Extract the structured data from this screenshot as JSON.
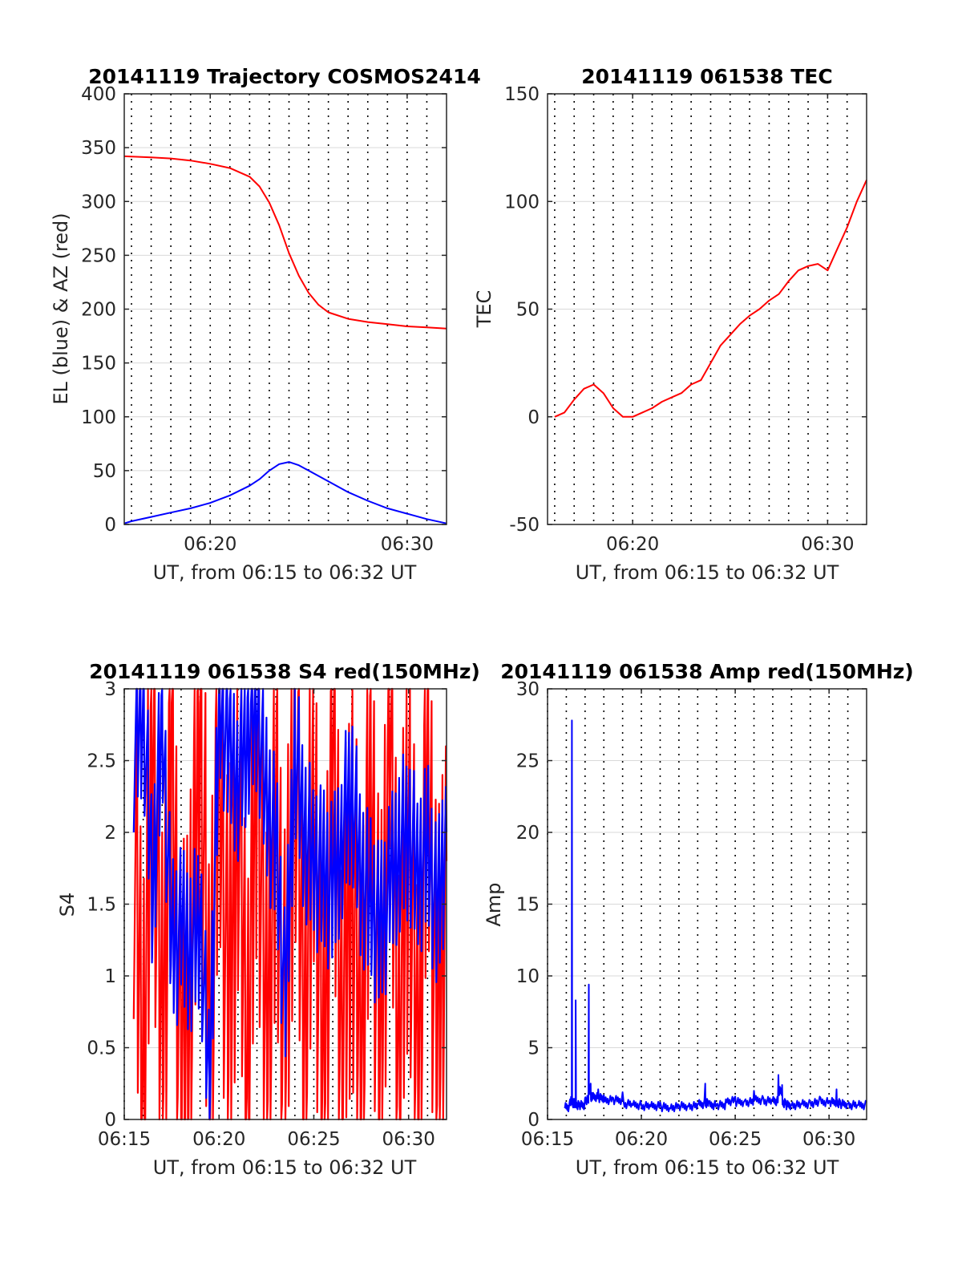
{
  "colors": {
    "az": "#ff0000",
    "el": "#0000ff",
    "tec": "#ff0000",
    "s4_red": "#ff0000",
    "s4_blue": "#0000ff",
    "amp": "#0000ff",
    "grid": "#d9d9d9",
    "axis": "#262626"
  },
  "chart_data": [
    {
      "type": "line",
      "title": "20141119 Trajectory COSMOS2414",
      "xlabel": "UT, from 06:15 to 06:32 UT",
      "ylabel": "EL (blue) & AZ (red)",
      "xlim": [
        "06:15:38",
        "06:32:00"
      ],
      "ylim": [
        0,
        400
      ],
      "yticks": [
        "0",
        "50",
        "100",
        "150",
        "200",
        "250",
        "300",
        "350",
        "400"
      ],
      "xticks": [
        "06:20",
        "06:30"
      ],
      "grid": "major horizontal gridlines, dotted vertical lines",
      "series": [
        {
          "name": "AZ",
          "color": "red",
          "x": [
            "06:15:38",
            "06:17:00",
            "06:18:00",
            "06:19:00",
            "06:20:00",
            "06:21:00",
            "06:22:00",
            "06:22:30",
            "06:23:00",
            "06:23:30",
            "06:24:00",
            "06:24:30",
            "06:25:00",
            "06:25:30",
            "06:26:00",
            "06:27:00",
            "06:28:00",
            "06:29:00",
            "06:30:00",
            "06:31:00",
            "06:32:00"
          ],
          "values": [
            342,
            341,
            340,
            338,
            335,
            331,
            323,
            314,
            299,
            278,
            252,
            231,
            215,
            204,
            197,
            191,
            188,
            186,
            184,
            183,
            182
          ]
        },
        {
          "name": "EL",
          "color": "blue",
          "x": [
            "06:15:38",
            "06:16:00",
            "06:17:00",
            "06:18:00",
            "06:19:00",
            "06:20:00",
            "06:21:00",
            "06:22:00",
            "06:22:30",
            "06:23:00",
            "06:23:30",
            "06:24:00",
            "06:24:30",
            "06:25:00",
            "06:26:00",
            "06:27:00",
            "06:28:00",
            "06:29:00",
            "06:30:00",
            "06:31:00",
            "06:32:00"
          ],
          "values": [
            1,
            3,
            7,
            11,
            15,
            20,
            27,
            36,
            42,
            50,
            56,
            58,
            55,
            50,
            40,
            30,
            22,
            15,
            10,
            5,
            1
          ]
        }
      ]
    },
    {
      "type": "line",
      "title": "20141119 061538 TEC",
      "xlabel": "UT, from 06:15 to 06:32 UT",
      "ylabel": "TEC",
      "xlim": [
        "06:15:38",
        "06:32:00"
      ],
      "ylim": [
        -50,
        150
      ],
      "yticks": [
        "-50",
        "0",
        "50",
        "100",
        "150"
      ],
      "xticks": [
        "06:20",
        "06:30"
      ],
      "series": [
        {
          "name": "TEC",
          "color": "red",
          "x": [
            "06:16:00",
            "06:16:30",
            "06:17:00",
            "06:17:30",
            "06:18:00",
            "06:18:30",
            "06:19:00",
            "06:19:30",
            "06:20:00",
            "06:20:30",
            "06:21:00",
            "06:21:30",
            "06:22:00",
            "06:22:30",
            "06:23:00",
            "06:23:30",
            "06:24:00",
            "06:24:30",
            "06:25:00",
            "06:25:30",
            "06:26:00",
            "06:26:30",
            "06:27:00",
            "06:27:30",
            "06:28:00",
            "06:28:30",
            "06:29:00",
            "06:29:30",
            "06:30:00",
            "06:30:30",
            "06:31:00",
            "06:31:30",
            "06:32:00"
          ],
          "values": [
            0,
            2,
            8,
            13,
            15,
            11,
            4,
            0,
            0,
            2,
            4,
            7,
            9,
            11,
            15,
            17,
            25,
            33,
            38,
            43,
            47,
            50,
            54,
            57,
            63,
            68,
            70,
            71,
            68,
            78,
            88,
            100,
            110
          ]
        }
      ]
    },
    {
      "type": "line",
      "title": "20141119 061538 S4 red(150MHz)",
      "xlabel": "UT, from 06:15 to 06:32 UT",
      "ylabel": "S4",
      "xlim": [
        "06:15:00",
        "06:32:00"
      ],
      "ylim": [
        0,
        3
      ],
      "yticks": [
        "0",
        "0.5",
        "1",
        "1.5",
        "2",
        "2.5",
        "3"
      ],
      "xticks": [
        "06:15",
        "06:20",
        "06:25",
        "06:30"
      ],
      "series": [
        {
          "name": "S4 red",
          "color": "red",
          "x": [
            "06:15:30",
            "06:16:00",
            "06:16:30",
            "06:17:00",
            "06:17:30",
            "06:18:00",
            "06:18:30",
            "06:19:00",
            "06:19:30",
            "06:20:00",
            "06:20:30",
            "06:21:00",
            "06:21:30",
            "06:22:00",
            "06:22:30",
            "06:23:00",
            "06:23:30",
            "06:24:00",
            "06:24:30",
            "06:25:00",
            "06:25:30",
            "06:26:00",
            "06:26:30",
            "06:27:00",
            "06:27:30",
            "06:28:00",
            "06:28:30",
            "06:29:00",
            "06:29:30",
            "06:30:00",
            "06:30:30",
            "06:31:00",
            "06:31:30",
            "06:32:00"
          ],
          "values": [
            2.2,
            0.3,
            2.8,
            0.5,
            2.6,
            0.2,
            1.1,
            2.9,
            0.4,
            2.7,
            0.6,
            2.4,
            0.3,
            2.8,
            0.5,
            2.1,
            0.4,
            2.9,
            0.6,
            2.3,
            0.2,
            2.6,
            0.7,
            1.9,
            0.4,
            2.5,
            0.3,
            2.8,
            0.5,
            2.2,
            0.3,
            2.7,
            0.4,
            1.8
          ]
        },
        {
          "name": "S4 blue",
          "color": "blue",
          "x": [
            "06:15:30",
            "06:16:00",
            "06:16:30",
            "06:17:00",
            "06:17:30",
            "06:18:00",
            "06:18:30",
            "06:19:00",
            "06:19:30",
            "06:20:00",
            "06:20:30",
            "06:21:00",
            "06:21:30",
            "06:22:00",
            "06:22:30",
            "06:23:00",
            "06:23:30",
            "06:24:00",
            "06:24:30",
            "06:25:00",
            "06:25:30",
            "06:26:00",
            "06:26:30",
            "06:27:00",
            "06:27:30",
            "06:28:00",
            "06:28:30",
            "06:29:00",
            "06:29:30",
            "06:30:00",
            "06:30:30",
            "06:31:00",
            "06:31:30",
            "06:32:00"
          ],
          "values": [
            2.6,
            2.9,
            1.6,
            2.8,
            1.2,
            1.3,
            1.2,
            1.4,
            0.2,
            2.9,
            2.6,
            2.4,
            2.7,
            2.9,
            2.2,
            1.9,
            0.8,
            2.6,
            2.0,
            1.8,
            1.7,
            1.6,
            2.0,
            2.3,
            1.7,
            1.5,
            1.3,
            1.6,
            1.9,
            2.0,
            1.7,
            1.9,
            1.4,
            2.0
          ]
        }
      ]
    },
    {
      "type": "line",
      "title": "20141119 061538 Amp red(150MHz)",
      "xlabel": "UT, from 06:15 to 06:32 UT",
      "ylabel": "Amp",
      "xlim": [
        "06:15:00",
        "06:32:00"
      ],
      "ylim": [
        0,
        30
      ],
      "yticks": [
        "0",
        "5",
        "10",
        "15",
        "20",
        "25",
        "30"
      ],
      "xticks": [
        "06:15",
        "06:20",
        "06:25",
        "06:30"
      ],
      "series": [
        {
          "name": "Amp",
          "color": "blue",
          "x": [
            "06:15:54",
            "06:16:12",
            "06:16:18",
            "06:16:24",
            "06:16:30",
            "06:16:42",
            "06:17:00",
            "06:17:12",
            "06:17:18",
            "06:17:24",
            "06:17:42",
            "06:18:00",
            "06:18:30",
            "06:19:00",
            "06:19:30",
            "06:20:00",
            "06:20:30",
            "06:21:00",
            "06:21:30",
            "06:22:00",
            "06:22:30",
            "06:23:00",
            "06:23:24",
            "06:23:36",
            "06:24:00",
            "06:24:30",
            "06:25:00",
            "06:25:30",
            "06:26:00",
            "06:26:30",
            "06:27:00",
            "06:27:18",
            "06:27:30",
            "06:27:42",
            "06:28:00",
            "06:28:30",
            "06:29:00",
            "06:29:30",
            "06:30:00",
            "06:30:24",
            "06:30:36",
            "06:31:00",
            "06:31:30",
            "06:32:00"
          ],
          "values": [
            0.8,
            1.4,
            27.8,
            1.2,
            8.3,
            1.0,
            1.5,
            9.4,
            2.5,
            1.8,
            2.1,
            1.7,
            1.5,
            1.9,
            1.1,
            1.0,
            0.9,
            1.2,
            0.8,
            1.0,
            0.9,
            1.1,
            2.5,
            1.2,
            1.0,
            1.4,
            1.6,
            1.3,
            2.0,
            1.5,
            1.4,
            3.1,
            2.4,
            1.2,
            1.0,
            1.1,
            1.2,
            1.6,
            1.3,
            2.1,
            1.2,
            1.1,
            1.0,
            1.2
          ]
        }
      ]
    }
  ]
}
